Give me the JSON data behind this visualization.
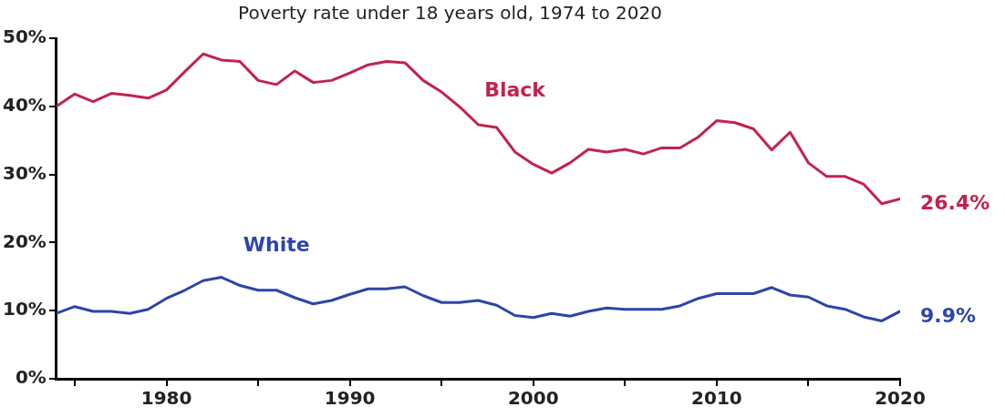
{
  "chart_data": {
    "type": "line",
    "title": "Poverty rate under 18 years old, 1974 to 2020",
    "x": [
      1974,
      1975,
      1976,
      1977,
      1978,
      1979,
      1980,
      1981,
      1982,
      1983,
      1984,
      1985,
      1986,
      1987,
      1988,
      1989,
      1990,
      1991,
      1992,
      1993,
      1994,
      1995,
      1996,
      1997,
      1998,
      1999,
      2000,
      2001,
      2002,
      2003,
      2004,
      2005,
      2006,
      2007,
      2008,
      2009,
      2010,
      2011,
      2012,
      2013,
      2014,
      2015,
      2016,
      2017,
      2018,
      2019,
      2020
    ],
    "series": [
      {
        "name": "Black",
        "color": "#c0244e",
        "values": [
          40.0,
          41.8,
          40.7,
          41.9,
          41.6,
          41.2,
          42.4,
          45.1,
          47.7,
          46.8,
          46.6,
          43.8,
          43.2,
          45.2,
          43.5,
          43.8,
          44.9,
          46.1,
          46.6,
          46.4,
          43.8,
          42.1,
          39.9,
          37.3,
          36.9,
          33.3,
          31.5,
          30.2,
          31.7,
          33.7,
          33.3,
          33.7,
          33.0,
          33.9,
          33.9,
          35.5,
          37.9,
          37.6,
          36.7,
          33.6,
          36.2,
          31.7,
          29.7,
          29.7,
          28.6,
          25.7,
          26.4
        ],
        "value_labels": [
          null,
          null,
          null,
          null,
          null,
          null,
          null,
          null,
          null,
          null,
          null,
          null,
          null,
          null,
          null,
          null,
          null,
          null,
          null,
          null,
          null,
          null,
          null,
          null,
          null,
          null,
          null,
          null,
          null,
          null,
          null,
          null,
          null,
          null,
          null,
          null,
          null,
          null,
          null,
          null,
          null,
          null,
          null,
          null,
          null,
          null,
          "26.4%"
        ]
      },
      {
        "name": "White",
        "color": "#2e45a8",
        "values": [
          9.6,
          10.6,
          9.9,
          9.9,
          9.6,
          10.2,
          11.8,
          13.0,
          14.4,
          14.9,
          13.7,
          13.0,
          13.0,
          11.9,
          11.0,
          11.5,
          12.4,
          13.2,
          13.2,
          13.5,
          12.2,
          11.2,
          11.2,
          11.5,
          10.8,
          9.3,
          9.0,
          9.6,
          9.2,
          9.9,
          10.4,
          10.2,
          10.2,
          10.2,
          10.7,
          11.8,
          12.5,
          12.5,
          12.5,
          13.4,
          12.3,
          12.0,
          10.7,
          10.2,
          9.1,
          8.5,
          9.9
        ],
        "value_labels": [
          null,
          null,
          null,
          null,
          null,
          null,
          null,
          null,
          null,
          null,
          null,
          null,
          null,
          null,
          null,
          null,
          null,
          null,
          null,
          null,
          null,
          null,
          null,
          null,
          null,
          null,
          null,
          null,
          null,
          null,
          null,
          null,
          null,
          null,
          null,
          null,
          null,
          null,
          null,
          null,
          null,
          null,
          null,
          null,
          null,
          null,
          "9.9%"
        ]
      }
    ],
    "xlim": [
      1974,
      2020
    ],
    "xticks": [
      {
        "value": 1975,
        "label": null
      },
      1980,
      {
        "value": 1985,
        "label": null
      },
      1990,
      {
        "value": 1995,
        "label": null
      },
      2000,
      {
        "value": 2005,
        "label": null
      },
      2010,
      {
        "value": 2015,
        "label": null
      },
      2020
    ],
    "ylim": [
      0,
      50
    ],
    "yticks": [
      {
        "value": 0,
        "label": "0%"
      },
      {
        "value": 10,
        "label": "10%"
      },
      {
        "value": 20,
        "label": "20%"
      },
      {
        "value": 30,
        "label": "30%"
      },
      {
        "value": 40,
        "label": "40%"
      },
      {
        "value": 50,
        "label": "50%"
      }
    ],
    "grid": false,
    "legend": false,
    "marker": "none",
    "line_style": "solid"
  }
}
